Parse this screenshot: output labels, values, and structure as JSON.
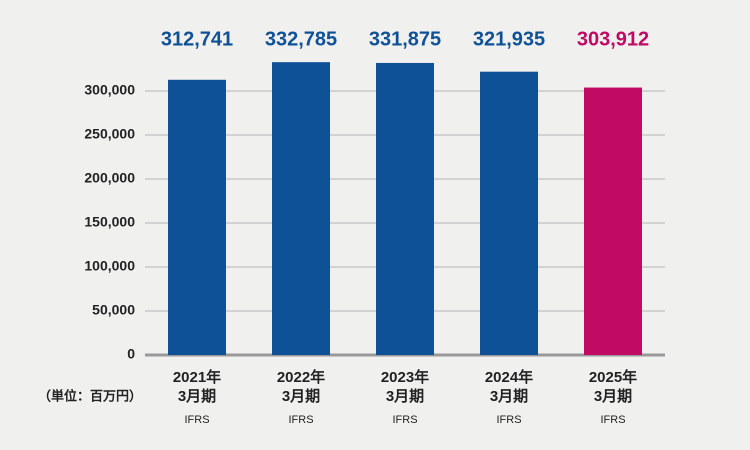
{
  "chart_data": {
    "type": "bar",
    "categories": [
      [
        "2021年",
        "3月期"
      ],
      [
        "2022年",
        "3月期"
      ],
      [
        "2023年",
        "3月期"
      ],
      [
        "2024年",
        "3月期"
      ],
      [
        "2025年",
        "3月期"
      ]
    ],
    "accounting_standard": [
      "IFRS",
      "IFRS",
      "IFRS",
      "IFRS",
      "IFRS"
    ],
    "values": [
      312741,
      332785,
      331875,
      321935,
      303912
    ],
    "value_labels": [
      "312,741",
      "332,785",
      "331,875",
      "321,935",
      "303,912"
    ],
    "colors": [
      "#0f5196",
      "#0f5196",
      "#0f5196",
      "#0f5196",
      "#c00a63"
    ],
    "unit_label": "（単位：百万円）",
    "ylim": [
      0,
      350000
    ],
    "yticks": [
      0,
      {
        "value": 50000,
        "label": "50,000"
      },
      {
        "value": 100000,
        "label": "100,000"
      },
      {
        "value": 150000,
        "label": "150,000"
      },
      {
        "value": 200000,
        "label": "200,000"
      },
      {
        "value": 250000,
        "label": "250,000"
      },
      {
        "value": 300000,
        "label": "300,000"
      }
    ],
    "grid": true
  }
}
